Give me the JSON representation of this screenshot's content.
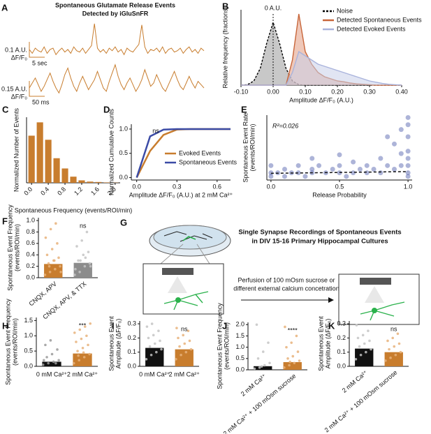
{
  "chart_data": [
    {
      "type": "trace",
      "panel": "A",
      "title": [
        "Spontaneous Glutamate Release Events",
        "Detected by iGluSnFR"
      ],
      "title_color": "#c87d2e",
      "series": [
        {
          "color": "#c87d2e",
          "ylim": [
            -0.05,
            0.22
          ],
          "values": [
            0.01,
            -0.02,
            0.02,
            0,
            -0.01,
            0.03,
            -0.02,
            0.01,
            0.02,
            -0.03,
            0,
            0.02,
            -0.01,
            0.01,
            -0.02,
            0.03,
            0,
            -0.01,
            0.02,
            -0.02,
            0.01,
            0.04,
            0.21,
            0.02,
            -0.01,
            0.01,
            -0.02,
            0.02,
            0,
            0.03,
            -0.01,
            0.01,
            -0.03,
            0.02,
            0,
            -0.01,
            0.02,
            0.05,
            0.2,
            0.03,
            -0.02,
            0.01,
            0,
            0.02,
            -0.01,
            0.03,
            -0.02,
            0.01,
            0.02,
            -0.01,
            0,
            0.02,
            -0.02,
            0.01,
            0.03,
            -0.01,
            0.01,
            -0.02,
            0.02,
            0
          ]
        },
        {
          "color": "#c87d2e",
          "ylim": [
            -0.05,
            0.16
          ],
          "values": [
            0,
            0.03,
            0.06,
            0.02,
            -0.02,
            0.01,
            0.05,
            0.09,
            0.04,
            0,
            -0.03,
            0.02,
            0.08,
            0.12,
            0.06,
            0.01,
            -0.02,
            0.03,
            0.07,
            0.03,
            -0.01,
            0.02,
            0.05,
            0.1,
            0.05,
            0,
            -0.02,
            0.04,
            0.09,
            0.14,
            0.07,
            0.02,
            -0.01,
            0.03,
            0.06,
            0.02,
            -0.02,
            0.01,
            0.05,
            0.11,
            0.06,
            0.01,
            0.03,
            0.08,
            0.04,
            0,
            -0.02,
            0.02,
            0.06,
            0.1,
            0.05,
            0.01,
            -0.01,
            0.03,
            0.07,
            0.03,
            0,
            0.04,
            0.02,
            0
          ]
        }
      ],
      "scale_bars": [
        {
          "y_label": "0.1 A.U.",
          "y_unit": "ΔF/F₀",
          "x_label": "5 sec"
        },
        {
          "y_label": "0.15 A.U.",
          "y_unit": "ΔF/F₀",
          "x_label": "50 ms"
        }
      ]
    },
    {
      "type": "area",
      "panel": "B",
      "ylabel": "Relative frequency (fractions)",
      "xlabel": "Amplitude ΔF/F₀ (A.U.)",
      "annotation": "0 A.U.",
      "xlim": [
        -0.1,
        0.4
      ],
      "ylim": [
        0,
        0.18
      ],
      "xticks": [
        {
          "value": -0.1,
          "label": "-0.10"
        },
        {
          "value": 0,
          "label": "0.00"
        },
        {
          "value": 0.1,
          "label": "0.10"
        },
        {
          "value": 0.2,
          "label": "0.20"
        },
        {
          "value": 0.3,
          "label": "0.30"
        },
        {
          "value": 0.4,
          "label": "0.40"
        }
      ],
      "x": [
        -0.1,
        -0.08,
        -0.06,
        -0.04,
        -0.02,
        0,
        0.02,
        0.04,
        0.06,
        0.08,
        0.1,
        0.12,
        0.14,
        0.16,
        0.18,
        0.2,
        0.22,
        0.24,
        0.26,
        0.28,
        0.3,
        0.32,
        0.34,
        0.36,
        0.38,
        0.4
      ],
      "series": [
        {
          "name": "Noise",
          "color": "#000000",
          "fill": "#9a9a9a",
          "dash": true,
          "values": [
            0,
            0.001,
            0.01,
            0.04,
            0.1,
            0.15,
            0.1,
            0.04,
            0.01,
            0.001,
            0,
            0,
            0,
            0,
            0,
            0,
            0,
            0,
            0,
            0,
            0,
            0,
            0,
            0,
            0,
            0
          ]
        },
        {
          "name": "Detected Spontaneous Events",
          "color": "#c8663a",
          "fill": "#e29a80",
          "dash": false,
          "values": [
            0,
            0,
            0,
            0,
            0,
            0,
            0,
            0,
            0.06,
            0.17,
            0.08,
            0.05,
            0.03,
            0.02,
            0.015,
            0.01,
            0.008,
            0.005,
            0.003,
            0.002,
            0.001,
            0,
            0,
            0,
            0,
            0
          ]
        },
        {
          "name": "Detected Evoked Events",
          "color": "#a9b3dc",
          "fill": "#c9cfea",
          "dash": false,
          "values": [
            0,
            0,
            0,
            0,
            0,
            0,
            0,
            0,
            0.03,
            0.08,
            0.07,
            0.06,
            0.05,
            0.045,
            0.04,
            0.035,
            0.03,
            0.025,
            0.02,
            0.015,
            0.01,
            0.007,
            0.004,
            0.002,
            0.001,
            0
          ]
        }
      ]
    },
    {
      "type": "bar",
      "panel": "C",
      "ylabel": "Normalized Number of Events",
      "xlabel": "Spontaneous Frequency (events/ROI/min)",
      "color": "#c87d2e",
      "xlim": [
        -0.12,
        2.12
      ],
      "ylim": [
        0,
        0.32
      ],
      "xticks": [
        {
          "value": 0,
          "label": "0.0"
        },
        {
          "value": 0.4,
          "label": "0.4"
        },
        {
          "value": 0.8,
          "label": "0.8"
        },
        {
          "value": 1.2,
          "label": "1.2"
        },
        {
          "value": 1.6,
          "label": "1.6"
        },
        {
          "value": 2,
          "label": "2.0"
        }
      ],
      "x": [
        0,
        0.2,
        0.4,
        0.6,
        0.8,
        1,
        1.2,
        1.4,
        1.6,
        1.8,
        2
      ],
      "values": [
        0.23,
        0.295,
        0.21,
        0.12,
        0.07,
        0.03,
        0.012,
        0.006,
        0.004,
        0.002,
        0.001
      ]
    },
    {
      "type": "line",
      "panel": "D",
      "ylabel": "Normalized Cumulative Counts",
      "xlabel": "Amplitude ΔF/F₀ (A.U.) at 2 mM Ca²⁺",
      "annotation": "ns",
      "xlim": [
        -0.04,
        0.7
      ],
      "ylim": [
        -0.05,
        1.1
      ],
      "xticks": [
        {
          "value": 0,
          "label": "0.0"
        },
        {
          "value": 0.3,
          "label": "0.3"
        },
        {
          "value": 0.6,
          "label": "0.6"
        }
      ],
      "yticks": [
        {
          "value": 0,
          "label": "0.0"
        },
        {
          "value": 0.5,
          "label": "0.5"
        },
        {
          "value": 1,
          "label": "1.0"
        }
      ],
      "x": [
        0,
        0.1,
        0.2,
        0.3,
        0.4,
        0.5,
        0.6,
        0.7
      ],
      "series": [
        {
          "name": "Evoked Events",
          "color": "#c87d2e",
          "values": [
            0,
            0.55,
            0.88,
            0.99,
            1,
            1,
            1,
            1
          ]
        },
        {
          "name": "Spontaneous Events",
          "color": "#3b4ba6",
          "values": [
            0,
            0.85,
            0.99,
            1,
            1,
            1,
            1,
            1
          ]
        }
      ]
    },
    {
      "type": "scatter",
      "panel": "E",
      "ylabel": [
        "Spontaneous Event Rate",
        "(events/ROI/min)"
      ],
      "xlabel": "Release Probability",
      "annotation": "R²=0.026",
      "color": "#4a58a8",
      "xlim": [
        -0.03,
        1.03
      ],
      "ylim": [
        0,
        2.7
      ],
      "xticks": [
        {
          "value": 0,
          "label": "0.0"
        },
        {
          "value": 0.5,
          "label": "0.5"
        },
        {
          "value": 1,
          "label": "1.0"
        }
      ],
      "x": [
        0,
        0,
        0,
        0.05,
        0.1,
        0.1,
        0.15,
        0.2,
        0.2,
        0.25,
        0.3,
        0.3,
        0.35,
        0.4,
        0.45,
        0.5,
        0.5,
        0.55,
        0.6,
        0.6,
        0.65,
        0.7,
        0.7,
        0.75,
        0.8,
        0.8,
        0.85,
        0.9,
        0.9,
        0.95,
        0.95,
        1,
        1,
        1,
        1,
        1,
        1,
        1,
        1,
        0.5,
        0.3,
        0.85,
        0.95
      ],
      "y": [
        0.15,
        0.3,
        0.6,
        0.3,
        0.15,
        0.45,
        0.3,
        0.3,
        0.6,
        0.15,
        0.3,
        0.45,
        0.6,
        0.3,
        0.45,
        0.3,
        0.6,
        0.15,
        0.3,
        0.75,
        0.45,
        0.3,
        0.6,
        0.45,
        0.3,
        0.9,
        0.6,
        0.45,
        1.5,
        0.6,
        1.1,
        0.15,
        0.3,
        0.6,
        0.9,
        1.2,
        1.8,
        2.3,
        2.6,
        1.05,
        0.9,
        1.8,
        2.1
      ],
      "fit": {
        "x": [
          0,
          1
        ],
        "y": [
          0.28,
          0.35
        ]
      }
    },
    {
      "type": "bar",
      "panel": "F",
      "ylabel": [
        "Spontaneous Event Frequency",
        "(events/ROI/min)"
      ],
      "annotation": "ns",
      "categories": [
        "CNQX, APV",
        "CNQX, APV, & TTX"
      ],
      "values": [
        0.24,
        0.26
      ],
      "colors": [
        "#c87d2e",
        "#8c8c8c"
      ],
      "point_colors": [
        "#e8b27a",
        "#c4c4c4"
      ],
      "ylim": [
        0,
        1.05
      ],
      "yticks": [
        {
          "value": 0,
          "label": "0.0"
        },
        {
          "value": 0.2,
          "label": "0.2"
        },
        {
          "value": 0.4,
          "label": "0.4"
        },
        {
          "value": 0.6,
          "label": "0.6"
        },
        {
          "value": 0.8,
          "label": "0.8"
        },
        {
          "value": 1,
          "label": "1.0"
        }
      ],
      "points": [
        [
          0.05,
          0.1,
          0.15,
          0.2,
          0.25,
          0.3,
          0.35,
          0.4,
          0.5,
          0.6,
          0.7,
          0.85,
          0.95,
          0.1,
          0.2,
          0.3
        ],
        [
          0.05,
          0.1,
          0.2,
          0.25,
          0.3,
          0.4,
          0.45,
          0.55,
          0.65,
          0.8,
          0.15,
          0.3,
          0.35,
          0.2
        ]
      ]
    },
    {
      "type": "bar",
      "panel": "H",
      "ylabel": [
        "Spontaneous Event Frequency",
        "(events/ROI/min)"
      ],
      "annotation": "***",
      "categories": [
        "0 mM Ca²⁺",
        "2 mM Ca²⁺"
      ],
      "values": [
        0.15,
        0.42
      ],
      "colors": [
        "#111111",
        "#c87d2e"
      ],
      "point_colors": [
        "#9a9a9a",
        "#e8b27a"
      ],
      "ylim": [
        0,
        1.6
      ],
      "yticks": [
        {
          "value": 0,
          "label": "0.0"
        },
        {
          "value": 0.5,
          "label": "0.5"
        },
        {
          "value": 1,
          "label": "1.0"
        },
        {
          "value": 1.5,
          "label": "1.5"
        }
      ],
      "points": [
        [
          0.05,
          0.1,
          0.15,
          0.2,
          0.3,
          0.4,
          0.55,
          0.7,
          0.85,
          0.1,
          0.2
        ],
        [
          0.1,
          0.2,
          0.3,
          0.4,
          0.5,
          0.6,
          0.7,
          0.8,
          0.9,
          1,
          1.1,
          1.2,
          1.3,
          1.4,
          0.35,
          0.45
        ]
      ]
    },
    {
      "type": "bar",
      "panel": "I",
      "ylabel": [
        "Spontaneous Event",
        "Amplitude (ΔF/F₀)"
      ],
      "annotation": "ns",
      "categories": [
        "0 mM Ca²⁺",
        "2 mM Ca²⁺"
      ],
      "values": [
        0.13,
        0.12
      ],
      "colors": [
        "#111111",
        "#c87d2e"
      ],
      "point_colors": [
        "#c4c4c4",
        "#e8b27a"
      ],
      "ylim": [
        0,
        0.32
      ],
      "yticks": [
        {
          "value": 0,
          "label": "0.0"
        },
        {
          "value": 0.1,
          "label": "0.1"
        },
        {
          "value": 0.2,
          "label": "0.2"
        },
        {
          "value": 0.3,
          "label": "0.3"
        }
      ],
      "points": [
        [
          0.05,
          0.08,
          0.1,
          0.12,
          0.14,
          0.16,
          0.18,
          0.2,
          0.22,
          0.25,
          0.28,
          0.3
        ],
        [
          0.05,
          0.08,
          0.1,
          0.12,
          0.14,
          0.16,
          0.18,
          0.2,
          0.22,
          0.25,
          0.27
        ]
      ]
    },
    {
      "type": "bar",
      "panel": "J",
      "ylabel": [
        "Spontaneous Event Frequency",
        "(events/ROI/min)"
      ],
      "annotation": "****",
      "categories": [
        "2 mM Ca²⁺",
        "2 mM Ca²⁺ + 100 mOsm sucrose"
      ],
      "values": [
        0.16,
        0.34
      ],
      "colors": [
        "#111111",
        "#c87d2e"
      ],
      "point_colors": [
        "#c4c4c4",
        "#e8b27a"
      ],
      "ylim": [
        0,
        2.1
      ],
      "yticks": [
        {
          "value": 0,
          "label": "0.0"
        },
        {
          "value": 0.5,
          "label": "0.5"
        },
        {
          "value": 1,
          "label": "1.0"
        },
        {
          "value": 1.5,
          "label": "1.5"
        },
        {
          "value": 2,
          "label": "2.0"
        }
      ],
      "points": [
        [
          0.05,
          0.1,
          0.2,
          0.3,
          0.5,
          0.8,
          1.2,
          2,
          0.15
        ],
        [
          0.1,
          0.2,
          0.3,
          0.4,
          0.5,
          0.6,
          0.8,
          1,
          1.2,
          1.5,
          1.9,
          0.35
        ]
      ]
    },
    {
      "type": "bar",
      "panel": "K",
      "ylabel": [
        "Spontaneous Event",
        "Amplitude (ΔF/F₀)"
      ],
      "annotation": "ns",
      "categories": [
        "2 mM Ca²⁺",
        "2 mM Ca²⁺ + 100 mOsm sucrose"
      ],
      "values": [
        0.125,
        0.1
      ],
      "colors": [
        "#111111",
        "#c87d2e"
      ],
      "point_colors": [
        "#c4c4c4",
        "#e8b27a"
      ],
      "ylim": [
        0,
        0.32
      ],
      "yticks": [
        {
          "value": 0,
          "label": "0.0"
        },
        {
          "value": 0.1,
          "label": "0.1"
        },
        {
          "value": 0.2,
          "label": "0.2"
        },
        {
          "value": 0.3,
          "label": "0.3"
        }
      ],
      "points": [
        [
          0.05,
          0.08,
          0.1,
          0.12,
          0.14,
          0.16,
          0.18,
          0.2,
          0.22,
          0.25,
          0.29
        ],
        [
          0.04,
          0.06,
          0.08,
          0.1,
          0.12,
          0.14,
          0.16,
          0.18,
          0.2,
          0.23
        ]
      ]
    }
  ],
  "schematic": {
    "panel": "G",
    "title": [
      "Single Synapse Recordings of Spontaneous Events",
      "in DIV 15-16 Primary Hippocampal Cultures"
    ],
    "arrow_label": [
      "Perfusion of 100 mOsm sucrose or",
      "different external calcium concetration"
    ]
  }
}
